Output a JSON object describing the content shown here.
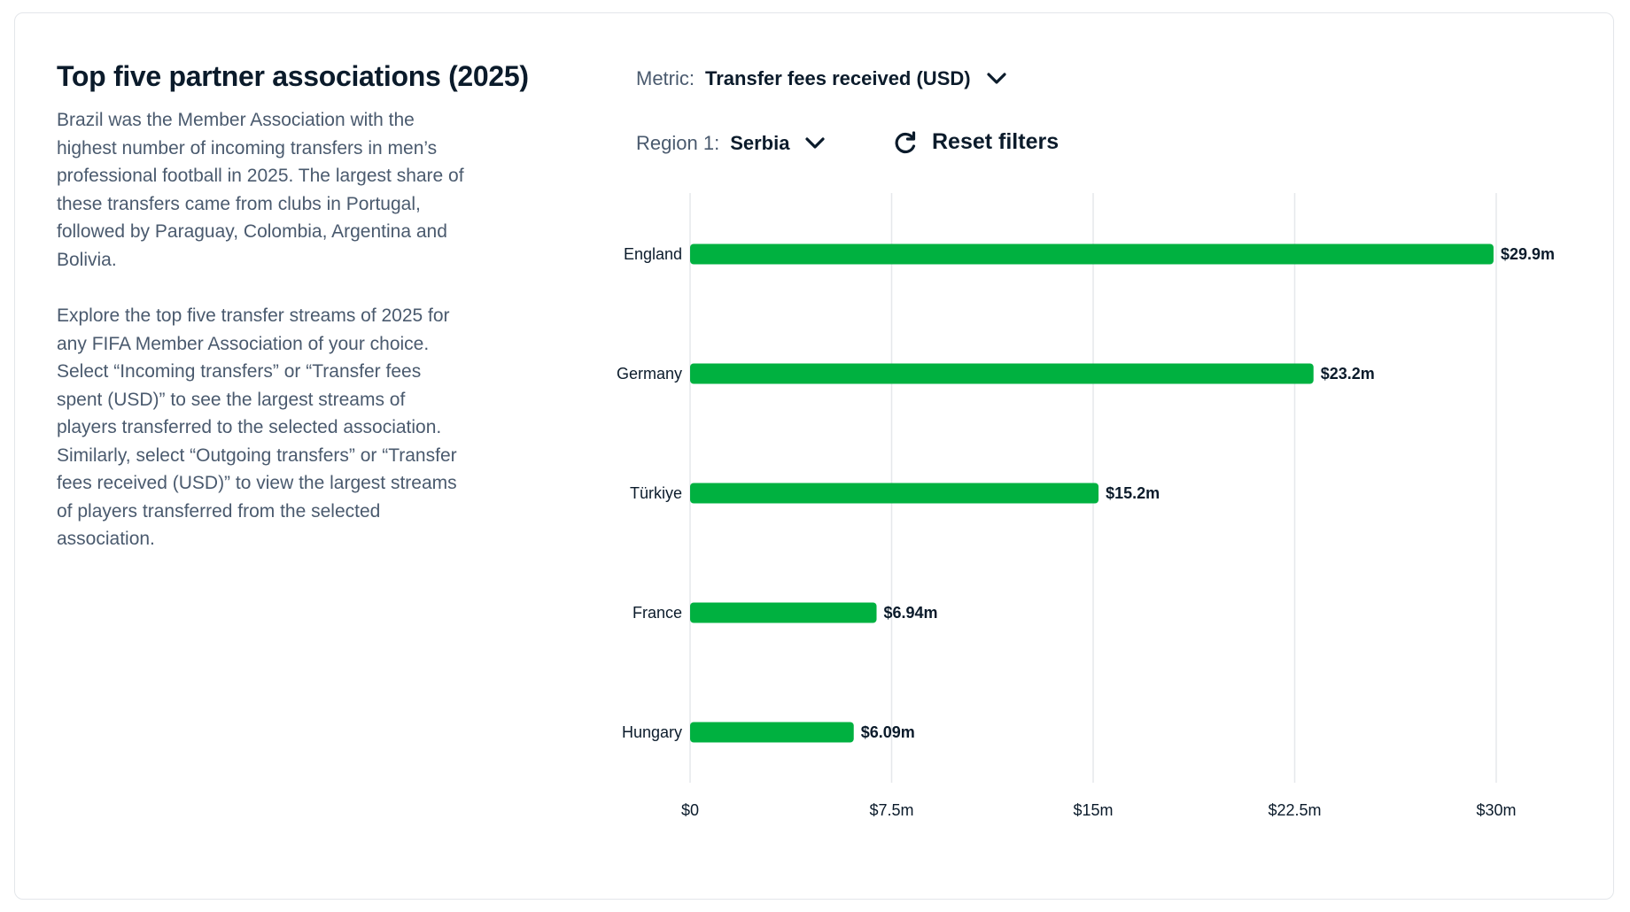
{
  "panel": {
    "title": "Top five partner associations (2025)",
    "paragraph1": "Brazil was the Member Association with the highest number of incoming transfers in men’s professional football in 2025. The largest share of these transfers came from clubs in Portugal, followed by Paraguay, Colombia, Argentina and Bolivia.",
    "paragraph2": "Explore the top five transfer streams of 2025 for any FIFA Member Association of your choice. Select “Incoming transfers” or “Transfer fees spent (USD)” to see the largest streams of players transferred to the selected association. Similarly, select “Outgoing transfers” or “Transfer fees received (USD)” to view the largest streams of players transferred from the selected association."
  },
  "filters": {
    "metric_label": "Metric:",
    "metric_value": "Transfer fees received (USD)",
    "region_label": "Region 1:",
    "region_value": "Serbia",
    "reset_label": "Reset filters"
  },
  "colors": {
    "bar": "#00b140",
    "grid": "#e6e8eb",
    "text": "#0b1b2b"
  },
  "chart_data": {
    "type": "bar",
    "orientation": "horizontal",
    "title": "",
    "xlabel": "",
    "ylabel": "",
    "categories": [
      "England",
      "Germany",
      "Türkiye",
      "France",
      "Hungary"
    ],
    "values": [
      29.9,
      23.2,
      15.2,
      6.94,
      6.09
    ],
    "value_labels": [
      "$29.9m",
      "$23.2m",
      "$15.2m",
      "$6.94m",
      "$6.09m"
    ],
    "unit": "million USD",
    "xlim": [
      0,
      30
    ],
    "x_ticks": [
      0,
      7.5,
      15,
      22.5,
      30
    ],
    "x_tick_labels": [
      "$0",
      "$7.5m",
      "$15m",
      "$22.5m",
      "$30m"
    ],
    "grid": true
  }
}
